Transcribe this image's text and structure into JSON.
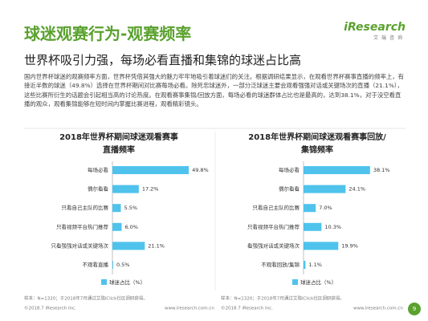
{
  "header": {
    "title": "球迷观赛行为-观赛频率",
    "subtitle": "世界杯吸引力强，每场必看直播和集锦的球迷占比高",
    "logo": "iResearch",
    "logo_sub": "艾瑞咨询"
  },
  "paragraph": "国内世界杯球迷的观赛频率方面，世界杯凭借其强大的魅力牢牢地吸引着球迷们的关注。根据调研结果显示，在观看世界杯赛事直播的频率上，有接近半数的球迷（49.8%）选择在世界杯期间对比赛每场必看。除死忠球迷外，一部分泛球迷主要会观看强强对话或关键场次的直播（21.1%），这些比赛所衍生的话题会引起相当高的讨论热度。在观看赛事集锦/回放方面，每场必看的球迷群体占比也是最高的，达到38.1%，对于没空看直播的观众，观看集锦能够在短时间内掌握比赛进程，观看精彩镜头。",
  "chart_data": [
    {
      "type": "bar",
      "orientation": "horizontal",
      "title": [
        "2018年世界杯期间球迷观看赛事",
        "直播频率"
      ],
      "categories": [
        "每场必看",
        "偶尔看看",
        "只看自己主队的比赛",
        "只看视频平台热门推荐",
        "只看强强对话或关键场次",
        "不观看直播"
      ],
      "series": [
        {
          "name": "球迷占比（%）",
          "color": "#4fc3ec",
          "values": [
            49.8,
            17.2,
            5.5,
            6.0,
            21.1,
            0.5
          ],
          "value_labels": [
            "49.8%",
            "17.2%",
            "5.5%",
            "6.0%",
            "21.1%",
            "0.5%"
          ]
        }
      ],
      "xlim": [
        0,
        55
      ],
      "legend": "bottom"
    },
    {
      "type": "bar",
      "orientation": "horizontal",
      "title": [
        "2018年世界杯期间球迷观看赛事回放/",
        "集锦频率"
      ],
      "categories": [
        "每场必看",
        "偶尔看看",
        "只看自己主队的比赛",
        "只看视频平台热门推荐",
        "看强强对话或关键场次",
        "不观看回放/集锦"
      ],
      "series": [
        {
          "name": "球迷占比（%）",
          "color": "#4fc3ec",
          "values": [
            38.1,
            24.1,
            7.0,
            10.3,
            19.9,
            1.1
          ],
          "value_labels": [
            "38.1%",
            "24.1%",
            "7.0%",
            "10.3%",
            "19.9%",
            "1.1%"
          ]
        }
      ],
      "xlim": [
        0,
        46
      ],
      "legend": "bottom"
    }
  ],
  "footer": [
    "样本：N=1320；于2018年7月通过艾瑞iClick社区调研获得。",
    "©2018.7 iResearch Inc.",
    "www.iresearch.com.cn",
    "样本：N=1320；于2018年7月通过艾瑞iClick社区调研获得。",
    "©2018.7 iResearch Inc.",
    "www.iresearch.com.cn"
  ],
  "page_number": "9"
}
